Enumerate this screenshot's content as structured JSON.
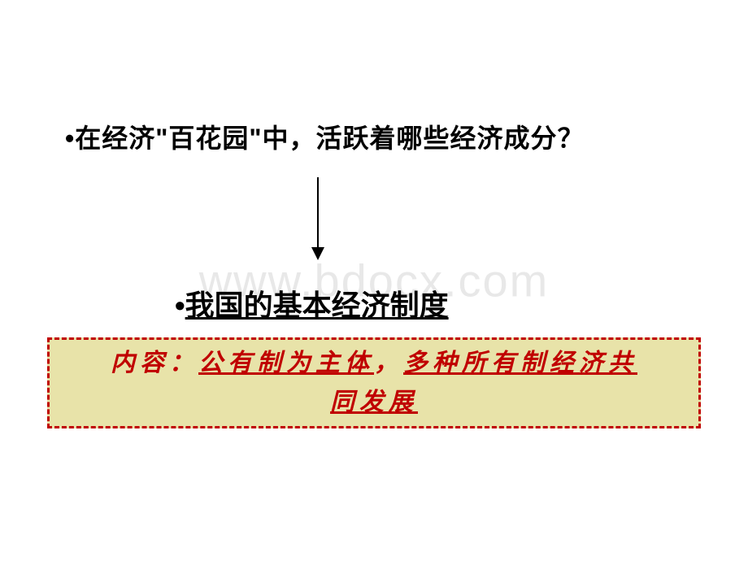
{
  "watermark": "www.bdocx.com",
  "question": {
    "bullet": "•",
    "text": "在经济\"百花园\"中，活跃着哪些经济成分？"
  },
  "system": {
    "bullet": "•",
    "text": "我国的基本经济制度"
  },
  "box": {
    "label": "内容：",
    "part1": "公有制为主体",
    "sep": "，",
    "part2_a": "多种所有制经济共",
    "part2_b": "同发展"
  },
  "colors": {
    "background": "#ffffff",
    "watermark": "#e8e8e8",
    "text": "#000000",
    "accent": "#c00000",
    "box_bg": "#e8e3a9",
    "box_border": "#c00000"
  }
}
